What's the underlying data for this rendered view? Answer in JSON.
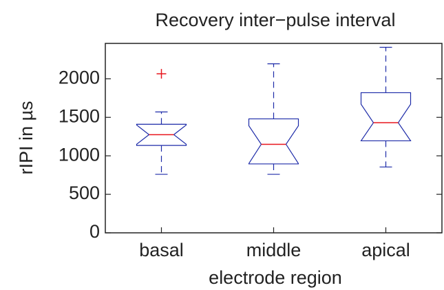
{
  "chart_data": {
    "type": "box",
    "title": "Recovery inter−pulse interval",
    "x_label": "electrode region",
    "y_label": "rIPI in µs",
    "categories": [
      "basal",
      "middle",
      "apical"
    ],
    "boxes": [
      {
        "whislo": 760,
        "q1": 1135,
        "med": 1275,
        "q3": 1410,
        "whishi": 1570,
        "notch_lo": 1150,
        "notch_hi": 1400,
        "fliers": [
          2065
        ]
      },
      {
        "whislo": 760,
        "q1": 895,
        "med": 1150,
        "q3": 1480,
        "whishi": 2195,
        "notch_lo": 900,
        "notch_hi": 1390,
        "fliers": []
      },
      {
        "whislo": 855,
        "q1": 1195,
        "med": 1430,
        "q3": 1820,
        "whishi": 2410,
        "notch_lo": 1195,
        "notch_hi": 1670,
        "fliers": []
      }
    ],
    "box_color": "#1c2aa8",
    "median_color": "#e8141c",
    "flier_color": "#e8141c",
    "ylim": [
      0,
      2460
    ],
    "yticks": [
      0,
      500,
      1000,
      1500,
      2000
    ]
  }
}
